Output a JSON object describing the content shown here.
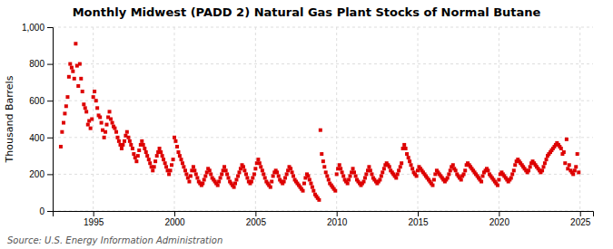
{
  "chart_data": {
    "type": "scatter",
    "title": "Monthly Midwest (PADD 2) Natural Gas Plant Stocks of Normal Butane",
    "ylabel": "Thousand Barrels",
    "annotations": [
      "Source: U.S. Energy Information Administration"
    ],
    "color": "#DD0000",
    "marker": "square",
    "grid": true,
    "xlim": [
      1992.5,
      2025.8
    ],
    "xticks": [
      1995,
      2000,
      2005,
      2010,
      2015,
      2020,
      2025
    ],
    "ylim": [
      0,
      1000
    ],
    "yticks": [
      0,
      200,
      400,
      600,
      800,
      {
        "value": 1000,
        "label": "1,000"
      }
    ],
    "x": [
      1993.0,
      1993.08,
      1993.17,
      1993.25,
      1993.33,
      1993.42,
      1993.5,
      1993.58,
      1993.67,
      1993.75,
      1993.83,
      1993.92,
      1994.0,
      1994.08,
      1994.17,
      1994.25,
      1994.33,
      1994.42,
      1994.5,
      1994.58,
      1994.67,
      1994.75,
      1994.83,
      1994.92,
      1995.0,
      1995.08,
      1995.17,
      1995.25,
      1995.33,
      1995.42,
      1995.5,
      1995.58,
      1995.67,
      1995.75,
      1995.83,
      1995.92,
      1996.0,
      1996.08,
      1996.17,
      1996.25,
      1996.33,
      1996.42,
      1996.5,
      1996.58,
      1996.67,
      1996.75,
      1996.83,
      1996.92,
      1997.0,
      1997.08,
      1997.17,
      1997.25,
      1997.33,
      1997.42,
      1997.5,
      1997.58,
      1997.67,
      1997.75,
      1997.83,
      1997.92,
      1998.0,
      1998.08,
      1998.17,
      1998.25,
      1998.33,
      1998.42,
      1998.5,
      1998.58,
      1998.67,
      1998.75,
      1998.83,
      1998.92,
      1999.0,
      1999.08,
      1999.17,
      1999.25,
      1999.33,
      1999.42,
      1999.5,
      1999.58,
      1999.67,
      1999.75,
      1999.83,
      1999.92,
      2000.0,
      2000.08,
      2000.17,
      2000.25,
      2000.33,
      2000.42,
      2000.5,
      2000.58,
      2000.67,
      2000.75,
      2000.83,
      2000.92,
      2001.0,
      2001.08,
      2001.17,
      2001.25,
      2001.33,
      2001.42,
      2001.5,
      2001.58,
      2001.67,
      2001.75,
      2001.83,
      2001.92,
      2002.0,
      2002.08,
      2002.17,
      2002.25,
      2002.33,
      2002.42,
      2002.5,
      2002.58,
      2002.67,
      2002.75,
      2002.83,
      2002.92,
      2003.0,
      2003.08,
      2003.17,
      2003.25,
      2003.33,
      2003.42,
      2003.5,
      2003.58,
      2003.67,
      2003.75,
      2003.83,
      2003.92,
      2004.0,
      2004.08,
      2004.17,
      2004.25,
      2004.33,
      2004.42,
      2004.5,
      2004.58,
      2004.67,
      2004.75,
      2004.83,
      2004.92,
      2005.0,
      2005.08,
      2005.17,
      2005.25,
      2005.33,
      2005.42,
      2005.5,
      2005.58,
      2005.67,
      2005.75,
      2005.83,
      2005.92,
      2006.0,
      2006.08,
      2006.17,
      2006.25,
      2006.33,
      2006.42,
      2006.5,
      2006.58,
      2006.67,
      2006.75,
      2006.83,
      2006.92,
      2007.0,
      2007.08,
      2007.17,
      2007.25,
      2007.33,
      2007.42,
      2007.5,
      2007.58,
      2007.67,
      2007.75,
      2007.83,
      2007.92,
      2008.0,
      2008.08,
      2008.17,
      2008.25,
      2008.33,
      2008.42,
      2008.5,
      2008.58,
      2008.67,
      2008.75,
      2008.83,
      2008.92,
      2009.0,
      2009.08,
      2009.17,
      2009.25,
      2009.33,
      2009.42,
      2009.5,
      2009.58,
      2009.67,
      2009.75,
      2009.83,
      2009.92,
      2010.0,
      2010.08,
      2010.17,
      2010.25,
      2010.33,
      2010.42,
      2010.5,
      2010.58,
      2010.67,
      2010.75,
      2010.83,
      2010.92,
      2011.0,
      2011.08,
      2011.17,
      2011.25,
      2011.33,
      2011.42,
      2011.5,
      2011.58,
      2011.67,
      2011.75,
      2011.83,
      2011.92,
      2012.0,
      2012.08,
      2012.17,
      2012.25,
      2012.33,
      2012.42,
      2012.5,
      2012.58,
      2012.67,
      2012.75,
      2012.83,
      2012.92,
      2013.0,
      2013.08,
      2013.17,
      2013.25,
      2013.33,
      2013.42,
      2013.5,
      2013.58,
      2013.67,
      2013.75,
      2013.83,
      2013.92,
      2014.0,
      2014.08,
      2014.17,
      2014.25,
      2014.33,
      2014.42,
      2014.5,
      2014.58,
      2014.67,
      2014.75,
      2014.83,
      2014.92,
      2015.0,
      2015.08,
      2015.17,
      2015.25,
      2015.33,
      2015.42,
      2015.5,
      2015.58,
      2015.67,
      2015.75,
      2015.83,
      2015.92,
      2016.0,
      2016.08,
      2016.17,
      2016.25,
      2016.33,
      2016.42,
      2016.5,
      2016.58,
      2016.67,
      2016.75,
      2016.83,
      2016.92,
      2017.0,
      2017.08,
      2017.17,
      2017.25,
      2017.33,
      2017.42,
      2017.5,
      2017.58,
      2017.67,
      2017.75,
      2017.83,
      2017.92,
      2018.0,
      2018.08,
      2018.17,
      2018.25,
      2018.33,
      2018.42,
      2018.5,
      2018.58,
      2018.67,
      2018.75,
      2018.83,
      2018.92,
      2019.0,
      2019.08,
      2019.17,
      2019.25,
      2019.33,
      2019.42,
      2019.5,
      2019.58,
      2019.67,
      2019.75,
      2019.83,
      2019.92,
      2020.0,
      2020.08,
      2020.17,
      2020.25,
      2020.33,
      2020.42,
      2020.5,
      2020.58,
      2020.67,
      2020.75,
      2020.83,
      2020.92,
      2021.0,
      2021.08,
      2021.17,
      2021.25,
      2021.33,
      2021.42,
      2021.5,
      2021.58,
      2021.67,
      2021.75,
      2021.83,
      2021.92,
      2022.0,
      2022.08,
      2022.17,
      2022.25,
      2022.33,
      2022.42,
      2022.5,
      2022.58,
      2022.67,
      2022.75,
      2022.83,
      2022.92,
      2023.0,
      2023.08,
      2023.17,
      2023.25,
      2023.33,
      2023.42,
      2023.5,
      2023.58,
      2023.67,
      2023.75,
      2023.83,
      2023.92,
      2024.0,
      2024.08,
      2024.17,
      2024.25,
      2024.33,
      2024.42,
      2024.5,
      2024.58,
      2024.67,
      2024.75,
      2024.83,
      2024.92
    ],
    "values": [
      350,
      430,
      480,
      530,
      570,
      620,
      730,
      800,
      780,
      760,
      720,
      910,
      790,
      680,
      800,
      720,
      650,
      580,
      560,
      540,
      470,
      490,
      450,
      500,
      620,
      650,
      600,
      560,
      520,
      510,
      480,
      440,
      400,
      430,
      470,
      510,
      540,
      500,
      480,
      460,
      450,
      430,
      400,
      380,
      360,
      340,
      360,
      380,
      410,
      430,
      400,
      380,
      360,
      340,
      310,
      290,
      270,
      300,
      330,
      360,
      380,
      360,
      340,
      320,
      300,
      280,
      260,
      240,
      220,
      240,
      270,
      300,
      320,
      340,
      320,
      300,
      280,
      260,
      240,
      220,
      200,
      220,
      250,
      280,
      400,
      380,
      350,
      320,
      300,
      280,
      260,
      240,
      220,
      200,
      180,
      160,
      190,
      220,
      240,
      220,
      200,
      180,
      160,
      150,
      140,
      150,
      170,
      190,
      210,
      230,
      220,
      200,
      180,
      170,
      160,
      150,
      140,
      160,
      180,
      200,
      220,
      240,
      220,
      200,
      180,
      160,
      150,
      140,
      130,
      150,
      170,
      190,
      210,
      230,
      250,
      240,
      220,
      200,
      180,
      160,
      150,
      160,
      180,
      200,
      230,
      260,
      280,
      260,
      240,
      220,
      200,
      180,
      160,
      150,
      140,
      130,
      160,
      190,
      210,
      220,
      210,
      190,
      170,
      160,
      150,
      160,
      180,
      200,
      220,
      240,
      230,
      210,
      190,
      170,
      160,
      150,
      140,
      130,
      120,
      110,
      150,
      180,
      200,
      190,
      170,
      150,
      130,
      110,
      90,
      80,
      70,
      60,
      440,
      310,
      270,
      240,
      210,
      190,
      170,
      150,
      140,
      130,
      120,
      110,
      200,
      230,
      250,
      230,
      210,
      190,
      170,
      160,
      150,
      170,
      190,
      210,
      230,
      210,
      190,
      170,
      160,
      150,
      140,
      150,
      160,
      180,
      200,
      220,
      240,
      220,
      200,
      180,
      170,
      160,
      150,
      160,
      170,
      190,
      210,
      230,
      250,
      260,
      250,
      240,
      220,
      210,
      200,
      190,
      180,
      200,
      220,
      240,
      260,
      340,
      360,
      340,
      310,
      290,
      270,
      250,
      230,
      210,
      200,
      190,
      220,
      240,
      230,
      220,
      210,
      200,
      190,
      180,
      170,
      160,
      150,
      140,
      170,
      200,
      220,
      210,
      200,
      190,
      180,
      170,
      160,
      170,
      180,
      200,
      220,
      240,
      250,
      230,
      220,
      200,
      190,
      180,
      170,
      190,
      200,
      220,
      250,
      260,
      250,
      240,
      230,
      220,
      210,
      200,
      190,
      180,
      170,
      160,
      190,
      210,
      220,
      230,
      220,
      200,
      190,
      180,
      170,
      160,
      150,
      140,
      170,
      200,
      210,
      200,
      190,
      180,
      170,
      160,
      170,
      180,
      200,
      220,
      250,
      270,
      280,
      270,
      260,
      250,
      240,
      230,
      220,
      210,
      220,
      240,
      260,
      270,
      260,
      250,
      240,
      230,
      220,
      210,
      220,
      240,
      260,
      280,
      300,
      310,
      320,
      330,
      340,
      350,
      360,
      370,
      360,
      350,
      340,
      310,
      320,
      260,
      390,
      230,
      250,
      220,
      210,
      200,
      220,
      240,
      310,
      210
    ]
  }
}
